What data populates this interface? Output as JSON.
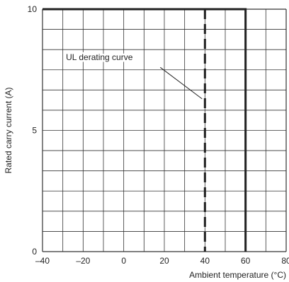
{
  "chart_data": {
    "type": "line",
    "xlabel": "Ambient temperature (°C)",
    "ylabel": "Rated carry current (A)",
    "xlim": [
      -40,
      80
    ],
    "ylim": [
      0,
      10
    ],
    "grid": true,
    "x_ticks": [
      {
        "value": -40,
        "label": "–40"
      },
      {
        "value": -20,
        "label": "–20"
      },
      {
        "value": 0,
        "label": "0"
      },
      {
        "value": 20,
        "label": "20"
      },
      {
        "value": 40,
        "label": "40"
      },
      {
        "value": 60,
        "label": "60"
      },
      {
        "value": 80,
        "label": "80"
      }
    ],
    "y_ticks": [
      {
        "value": 0,
        "label": "0"
      },
      {
        "value": 5,
        "label": "5"
      },
      {
        "value": 10,
        "label": "10"
      }
    ],
    "series": [
      {
        "style": "solid",
        "x": [
          -40,
          60,
          60
        ],
        "y": [
          10,
          10,
          0
        ]
      },
      {
        "name": "UL derating curve",
        "style": "dashed",
        "x": [
          40,
          40
        ],
        "y": [
          10,
          0
        ]
      }
    ],
    "annotations": [
      {
        "text": "UL derating curve",
        "target_x": 40,
        "target_y": 6.3
      }
    ],
    "colors": {
      "line": "#222222",
      "grid": "#333333"
    }
  }
}
